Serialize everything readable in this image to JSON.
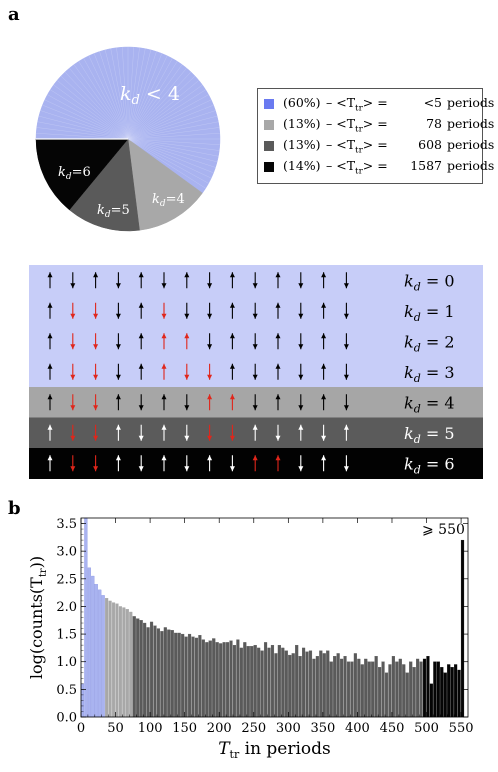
{
  "panels": {
    "a": "a",
    "b": "b"
  },
  "pie": {
    "slices": [
      {
        "name": "kd<4",
        "pct": 60,
        "color": "#a9b3f0",
        "label": "k_d < 4"
      },
      {
        "name": "kd=4",
        "pct": 13,
        "color": "#a8a8a8",
        "label": "k_d=4"
      },
      {
        "name": "kd=5",
        "pct": 13,
        "color": "#5a5a5a",
        "label": "k_d=5"
      },
      {
        "name": "kd=6",
        "pct": 14,
        "color": "#050505",
        "label": "k_d=6"
      }
    ],
    "labels": {
      "k_lt4_main": "k",
      "k_lt4_sub": "d",
      "k_lt4_rest": " < 4",
      "k4_main": "k",
      "k4_sub": "d",
      "k4_rest": "=4",
      "k5_main": "k",
      "k5_sub": "d",
      "k5_rest": "=5",
      "k6_main": "k",
      "k6_sub": "d",
      "k6_rest": "=6"
    }
  },
  "legend": [
    {
      "swatch": "#6a7af0",
      "pct": "(60%)",
      "mid": "– <T",
      "sub": "tr",
      "gt": "> =",
      "value": "<5",
      "unit": "periods"
    },
    {
      "swatch": "#a8a8a8",
      "pct": "(13%)",
      "mid": "– <T",
      "sub": "tr",
      "gt": "> =",
      "value": "78",
      "unit": "periods"
    },
    {
      "swatch": "#5a5a5a",
      "pct": "(13%)",
      "mid": "– <T",
      "sub": "tr",
      "gt": "> =",
      "value": "608",
      "unit": "periods"
    },
    {
      "swatch": "#050505",
      "pct": "(14%)",
      "mid": "– <T",
      "sub": "tr",
      "gt": "> =",
      "value": "1587",
      "unit": "periods"
    }
  ],
  "spin_grid": {
    "rows": [
      {
        "label_k": "k",
        "label_sub": "d",
        "label_rest": " = 0",
        "bg": "#c7cdf8",
        "pattern": "UDUDUDUDUDUDUD",
        "red": []
      },
      {
        "label_k": "k",
        "label_sub": "d",
        "label_rest": " = 1",
        "bg": "#c7cdf8",
        "pattern": "UDDDUDDDUDUDUD",
        "red": [
          1,
          2,
          5
        ]
      },
      {
        "label_k": "k",
        "label_sub": "d",
        "label_rest": " = 2",
        "bg": "#c7cdf8",
        "pattern": "UDDDUUUDUDUDUD",
        "red": [
          1,
          2,
          5,
          6
        ]
      },
      {
        "label_k": "k",
        "label_sub": "d",
        "label_rest": " = 3",
        "bg": "#c7cdf8",
        "pattern": "UDDDUUDDUDUDUD",
        "red": [
          1,
          2,
          5,
          6,
          7
        ]
      },
      {
        "label_k": "k",
        "label_sub": "d",
        "label_rest": " = 4",
        "bg": "#a6a6a6",
        "pattern": "UDDUDUDUUDUDUD",
        "red": [
          1,
          2,
          7,
          8
        ]
      },
      {
        "label_k": "k",
        "label_sub": "d",
        "label_rest": " = 5",
        "bg": "#5b5b5b",
        "pattern": "UDDUDUDDDUDUDU",
        "red": [
          1,
          2,
          7,
          8
        ]
      },
      {
        "label_k": "k",
        "label_sub": "d",
        "label_rest": " = 6",
        "bg": "#020202",
        "pattern": "UDDUDUDUDUUDUD",
        "red": [
          1,
          2,
          9,
          10
        ]
      }
    ]
  },
  "chart_data": {
    "type": "bar",
    "xlabel_main": "T",
    "xlabel_sub": "tr",
    "xlabel_rest": " in periods",
    "ylabel": "log(counts(T",
    "ylabel_sub": "tr",
    "ylabel_end": "))",
    "annotation": "⩾ 550",
    "xlim": [
      0,
      560
    ],
    "ylim": [
      0,
      3.6
    ],
    "xticks": [
      0,
      50,
      100,
      150,
      200,
      250,
      300,
      350,
      400,
      450,
      500,
      550
    ],
    "yticks": [
      0.0,
      0.5,
      1.0,
      1.5,
      2.0,
      2.5,
      3.0,
      3.5
    ],
    "ytick_labels": [
      "0.0",
      "0.5",
      "1.0",
      "1.5",
      "2.0",
      "2.5",
      "3.0",
      "3.5"
    ],
    "bin_width": 5,
    "bin_start": 0,
    "colors": {
      "blue": "#a9b3f0",
      "lightgray": "#a8a8a8",
      "gray": "#5a5a5a",
      "black": "#050505"
    },
    "values": [
      0.6,
      3.6,
      2.7,
      2.55,
      2.4,
      2.3,
      2.2,
      2.15,
      2.1,
      2.07,
      2.05,
      2.0,
      1.98,
      1.95,
      1.9,
      1.82,
      1.78,
      1.75,
      1.7,
      1.62,
      1.72,
      1.65,
      1.6,
      1.55,
      1.62,
      1.58,
      1.57,
      1.52,
      1.52,
      1.5,
      1.45,
      1.5,
      1.45,
      1.43,
      1.48,
      1.4,
      1.35,
      1.38,
      1.42,
      1.35,
      1.33,
      1.35,
      1.35,
      1.38,
      1.3,
      1.4,
      1.25,
      1.35,
      1.28,
      1.28,
      1.3,
      1.25,
      1.2,
      1.35,
      1.25,
      1.3,
      1.15,
      1.3,
      1.25,
      1.2,
      1.12,
      1.15,
      1.3,
      1.1,
      1.25,
      1.18,
      1.2,
      1.05,
      1.1,
      1.2,
      1.15,
      1.2,
      1.0,
      1.1,
      1.15,
      1.05,
      1.1,
      1.0,
      1.0,
      1.15,
      1.05,
      0.95,
      1.05,
      1.0,
      1.0,
      1.1,
      0.9,
      1.0,
      0.8,
      0.95,
      1.1,
      1.0,
      1.05,
      0.95,
      0.8,
      1.0,
      0.9,
      1.05,
      1.0,
      1.05,
      1.1,
      0.6,
      1.0,
      1.0,
      0.9,
      0.8,
      0.95,
      0.9,
      0.95,
      0.85,
      3.2
    ],
    "color_breaks": [
      [
        0,
        35,
        "blue"
      ],
      [
        35,
        75,
        "lightgray"
      ],
      [
        75,
        495,
        "gray"
      ],
      [
        495,
        560,
        "black"
      ]
    ]
  }
}
